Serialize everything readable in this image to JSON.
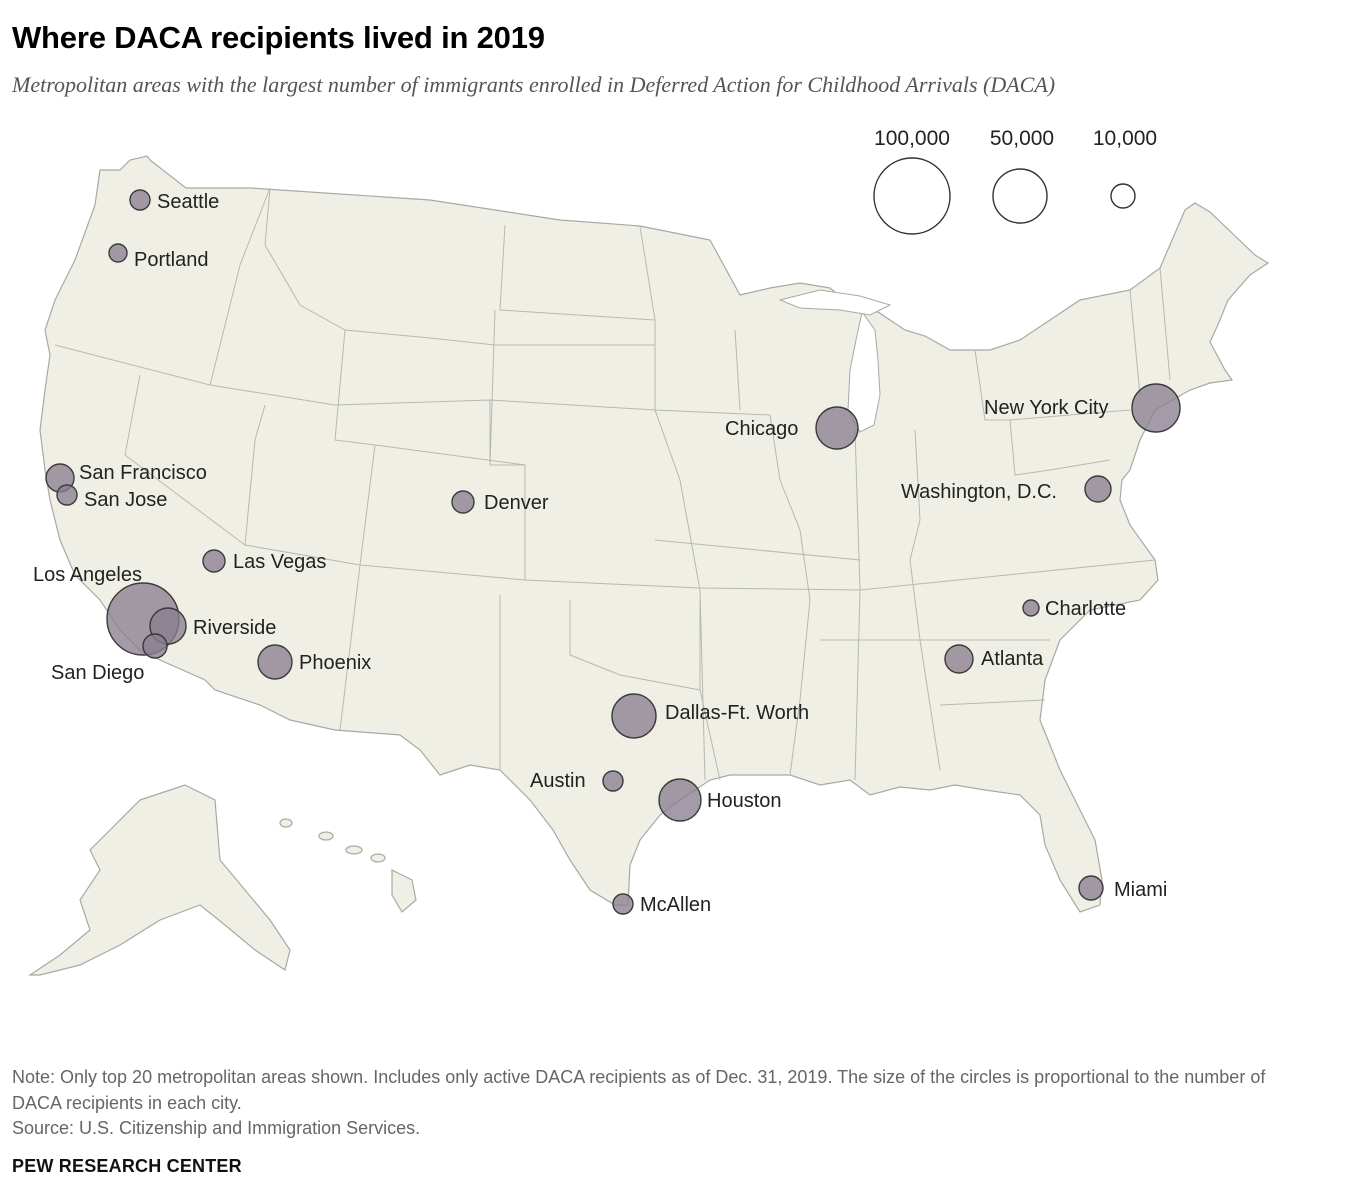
{
  "title": "Where DACA recipients lived in 2019",
  "subtitle": "Metropolitan areas with the largest number of immigrants enrolled in Deferred Action for Childhood Arrivals (DACA)",
  "legend": {
    "items": [
      {
        "label": "100,000",
        "value": 100000
      },
      {
        "label": "50,000",
        "value": 50000
      },
      {
        "label": "10,000",
        "value": 10000
      }
    ]
  },
  "cities": [
    {
      "name": "Seattle"
    },
    {
      "name": "Portland"
    },
    {
      "name": "San Francisco"
    },
    {
      "name": "San Jose"
    },
    {
      "name": "Los Angeles"
    },
    {
      "name": "Riverside"
    },
    {
      "name": "San Diego"
    },
    {
      "name": "Las Vegas"
    },
    {
      "name": "Phoenix"
    },
    {
      "name": "Denver"
    },
    {
      "name": "Dallas-Ft. Worth"
    },
    {
      "name": "Austin"
    },
    {
      "name": "Houston"
    },
    {
      "name": "McAllen"
    },
    {
      "name": "Chicago"
    },
    {
      "name": "New York City"
    },
    {
      "name": "Washington, D.C."
    },
    {
      "name": "Charlotte"
    },
    {
      "name": "Atlanta"
    },
    {
      "name": "Miami"
    }
  ],
  "colors": {
    "land": "#efefe6",
    "border": "#a9a9a4",
    "bubble_fill": "#8a7f8f",
    "bubble_stroke": "#3a3a3a"
  },
  "note": "Note: Only top 20 metropolitan areas shown. Includes only active DACA recipients as of Dec. 31, 2019. The size of the circles is proportional to the number of DACA recipients in each city.",
  "source": "Source: U.S. Citizenship and Immigration Services.",
  "brand": "PEW RESEARCH CENTER"
}
